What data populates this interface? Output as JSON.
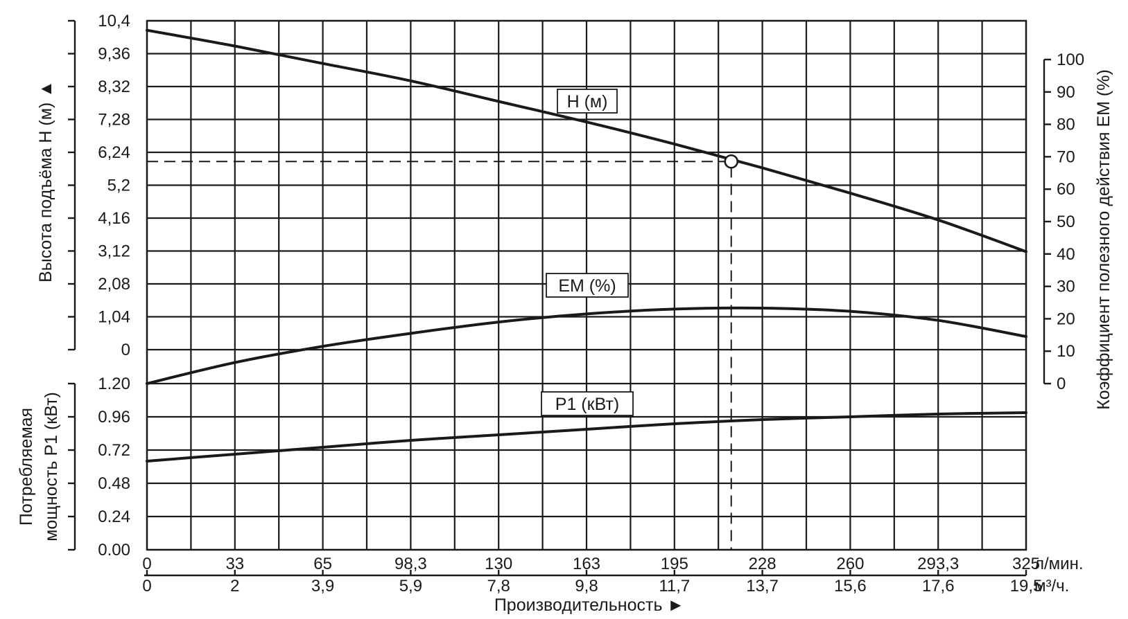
{
  "chart_data": {
    "type": "line",
    "xlabel": "Производительность ►",
    "x_ticks_primary": [
      "0",
      "33",
      "65",
      "98,3",
      "130",
      "163",
      "195",
      "228",
      "260",
      "293,3",
      "325"
    ],
    "x_unit_primary": "л/мин.",
    "x_ticks_secondary": [
      "0",
      "2",
      "3,9",
      "5,9",
      "7,8",
      "9,8",
      "11,7",
      "13,7",
      "15,6",
      "17,6",
      "19,5"
    ],
    "x_unit_secondary": "м³/ч.",
    "xlim": [
      0,
      325
    ],
    "top_panel": {
      "ylabel_left": "Высота подъёма H (м) ▲",
      "yticks_left": [
        "0",
        "1,04",
        "2,08",
        "3,12",
        "4,16",
        "5,2",
        "6,24",
        "7,28",
        "8,32",
        "9,36",
        "10,4"
      ],
      "ylim_left": [
        0,
        10.4
      ],
      "ylabel_right": "Коэффициент полезного действия ЕМ (%)",
      "yticks_right": [
        "0",
        "10",
        "20",
        "30",
        "40",
        "50",
        "60",
        "70",
        "80",
        "90",
        "100"
      ],
      "ylim_right": [
        0,
        100
      ]
    },
    "bottom_panel": {
      "ylabel_left_line1": "Потребляемая",
      "ylabel_left_line2": "мощность P1 (кВт)",
      "yticks_left": [
        "0.00",
        "0.24",
        "0.48",
        "0.72",
        "0.96",
        "1.20"
      ],
      "ylim_left": [
        0,
        1.2
      ]
    },
    "series": [
      {
        "name": "H (м)",
        "axis": "top-left",
        "x": [
          0,
          32.5,
          65,
          97.5,
          130,
          162.5,
          195,
          227.5,
          260,
          292.5,
          325
        ],
        "values": [
          10.1,
          9.6,
          9.05,
          8.5,
          7.85,
          7.2,
          6.5,
          5.75,
          4.95,
          4.1,
          3.1
        ]
      },
      {
        "name": "EM (%)",
        "axis": "top-right",
        "x": [
          0,
          32.5,
          65,
          97.5,
          130,
          162.5,
          195,
          227.5,
          260,
          292.5,
          325
        ],
        "values": [
          0,
          6.5,
          11.5,
          15.5,
          19,
          21.5,
          23,
          23.3,
          22.3,
          19.5,
          14.5
        ]
      },
      {
        "name": "P1 (кВт)",
        "axis": "bottom-left",
        "x": [
          0,
          32.5,
          65,
          97.5,
          130,
          162.5,
          195,
          227.5,
          260,
          292.5,
          325
        ],
        "values": [
          0.64,
          0.69,
          0.74,
          0.79,
          0.83,
          0.87,
          0.91,
          0.94,
          0.96,
          0.98,
          0.99
        ]
      }
    ],
    "operating_point": {
      "x": 216,
      "h": 5.95
    },
    "grid": true
  }
}
